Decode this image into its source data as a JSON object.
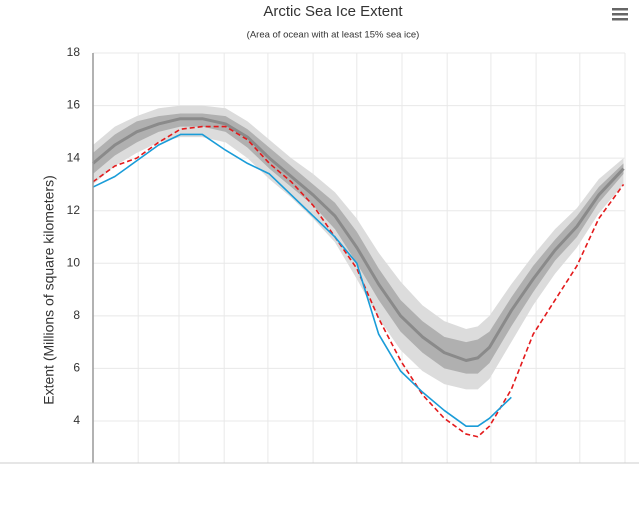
{
  "chart_data": {
    "type": "line",
    "title": "Arctic Sea Ice Extent",
    "subtitle": "(Area of ocean with at least 15% sea ice)",
    "y_label": "Extent (Millions of square kilometers)",
    "x": [
      1,
      16,
      31,
      46,
      61,
      76,
      92,
      107,
      122,
      137,
      152,
      167,
      182,
      197,
      212,
      227,
      242,
      257,
      265,
      273,
      288,
      303,
      318,
      333,
      348,
      365
    ],
    "xlim": [
      1,
      366
    ],
    "xticks": [
      1,
      32,
      60,
      91,
      121,
      152,
      182,
      213,
      244,
      274,
      305,
      335,
      366
    ],
    "ylim": [
      2.4,
      18
    ],
    "yticks": [
      4,
      6,
      8,
      10,
      12,
      14,
      16,
      18
    ],
    "grid": true,
    "bands": [
      {
        "color": "#dcdcdc",
        "high": [
          14.5,
          15.2,
          15.6,
          15.9,
          16.0,
          16.0,
          15.9,
          15.4,
          14.7,
          14.0,
          13.4,
          12.7,
          11.7,
          10.4,
          9.3,
          8.4,
          7.8,
          7.5,
          7.6,
          8.0,
          9.2,
          10.3,
          11.3,
          12.1,
          13.2,
          14.0
        ],
        "low": [
          13.0,
          13.7,
          14.2,
          14.6,
          14.8,
          14.8,
          14.6,
          14.0,
          13.2,
          12.5,
          11.7,
          10.8,
          9.4,
          7.9,
          6.7,
          5.9,
          5.4,
          5.2,
          5.2,
          5.6,
          7.0,
          8.4,
          9.6,
          10.6,
          11.9,
          13.0
        ]
      },
      {
        "color": "#b0b0b0",
        "high": [
          14.2,
          14.9,
          15.4,
          15.6,
          15.7,
          15.7,
          15.6,
          15.1,
          14.4,
          13.7,
          13.0,
          12.3,
          11.2,
          9.8,
          8.6,
          7.8,
          7.2,
          7.0,
          7.1,
          7.4,
          8.7,
          9.9,
          10.9,
          11.8,
          12.9,
          13.8
        ],
        "low": [
          13.4,
          14.1,
          14.6,
          15.0,
          15.2,
          15.2,
          15.0,
          14.4,
          13.6,
          12.9,
          12.2,
          11.3,
          10.0,
          8.6,
          7.4,
          6.6,
          6.0,
          5.8,
          5.8,
          6.2,
          7.6,
          8.9,
          10.1,
          11.0,
          12.3,
          13.4
        ]
      }
    ],
    "series": [
      {
        "color": "#8a8a8a",
        "width": 3,
        "dashed": false,
        "values": [
          13.8,
          14.5,
          15.0,
          15.3,
          15.5,
          15.5,
          15.3,
          14.8,
          14.0,
          13.3,
          12.6,
          11.8,
          10.6,
          9.2,
          8.0,
          7.2,
          6.6,
          6.3,
          6.4,
          6.8,
          8.2,
          9.4,
          10.5,
          11.4,
          12.6,
          13.6
        ]
      },
      {
        "color": "#e31a1c",
        "width": 1.6,
        "dashed": true,
        "values": [
          13.1,
          13.7,
          14.0,
          14.6,
          15.1,
          15.2,
          15.2,
          14.7,
          13.8,
          13.1,
          12.2,
          11.0,
          9.8,
          7.9,
          6.3,
          5.0,
          4.1,
          3.5,
          3.4,
          3.8,
          5.2,
          7.3,
          8.6,
          9.9,
          11.7,
          13.0
        ]
      },
      {
        "color": "#1a9cd8",
        "width": 1.6,
        "dashed": false,
        "values": [
          12.9,
          13.3,
          13.9,
          14.5,
          14.9,
          14.9,
          14.3,
          13.8,
          13.4,
          12.6,
          11.8,
          11.0,
          10.0,
          7.3,
          5.9,
          5.1,
          4.4,
          3.8,
          3.8,
          4.1,
          4.9,
          null,
          null,
          null,
          null,
          null
        ]
      }
    ]
  }
}
